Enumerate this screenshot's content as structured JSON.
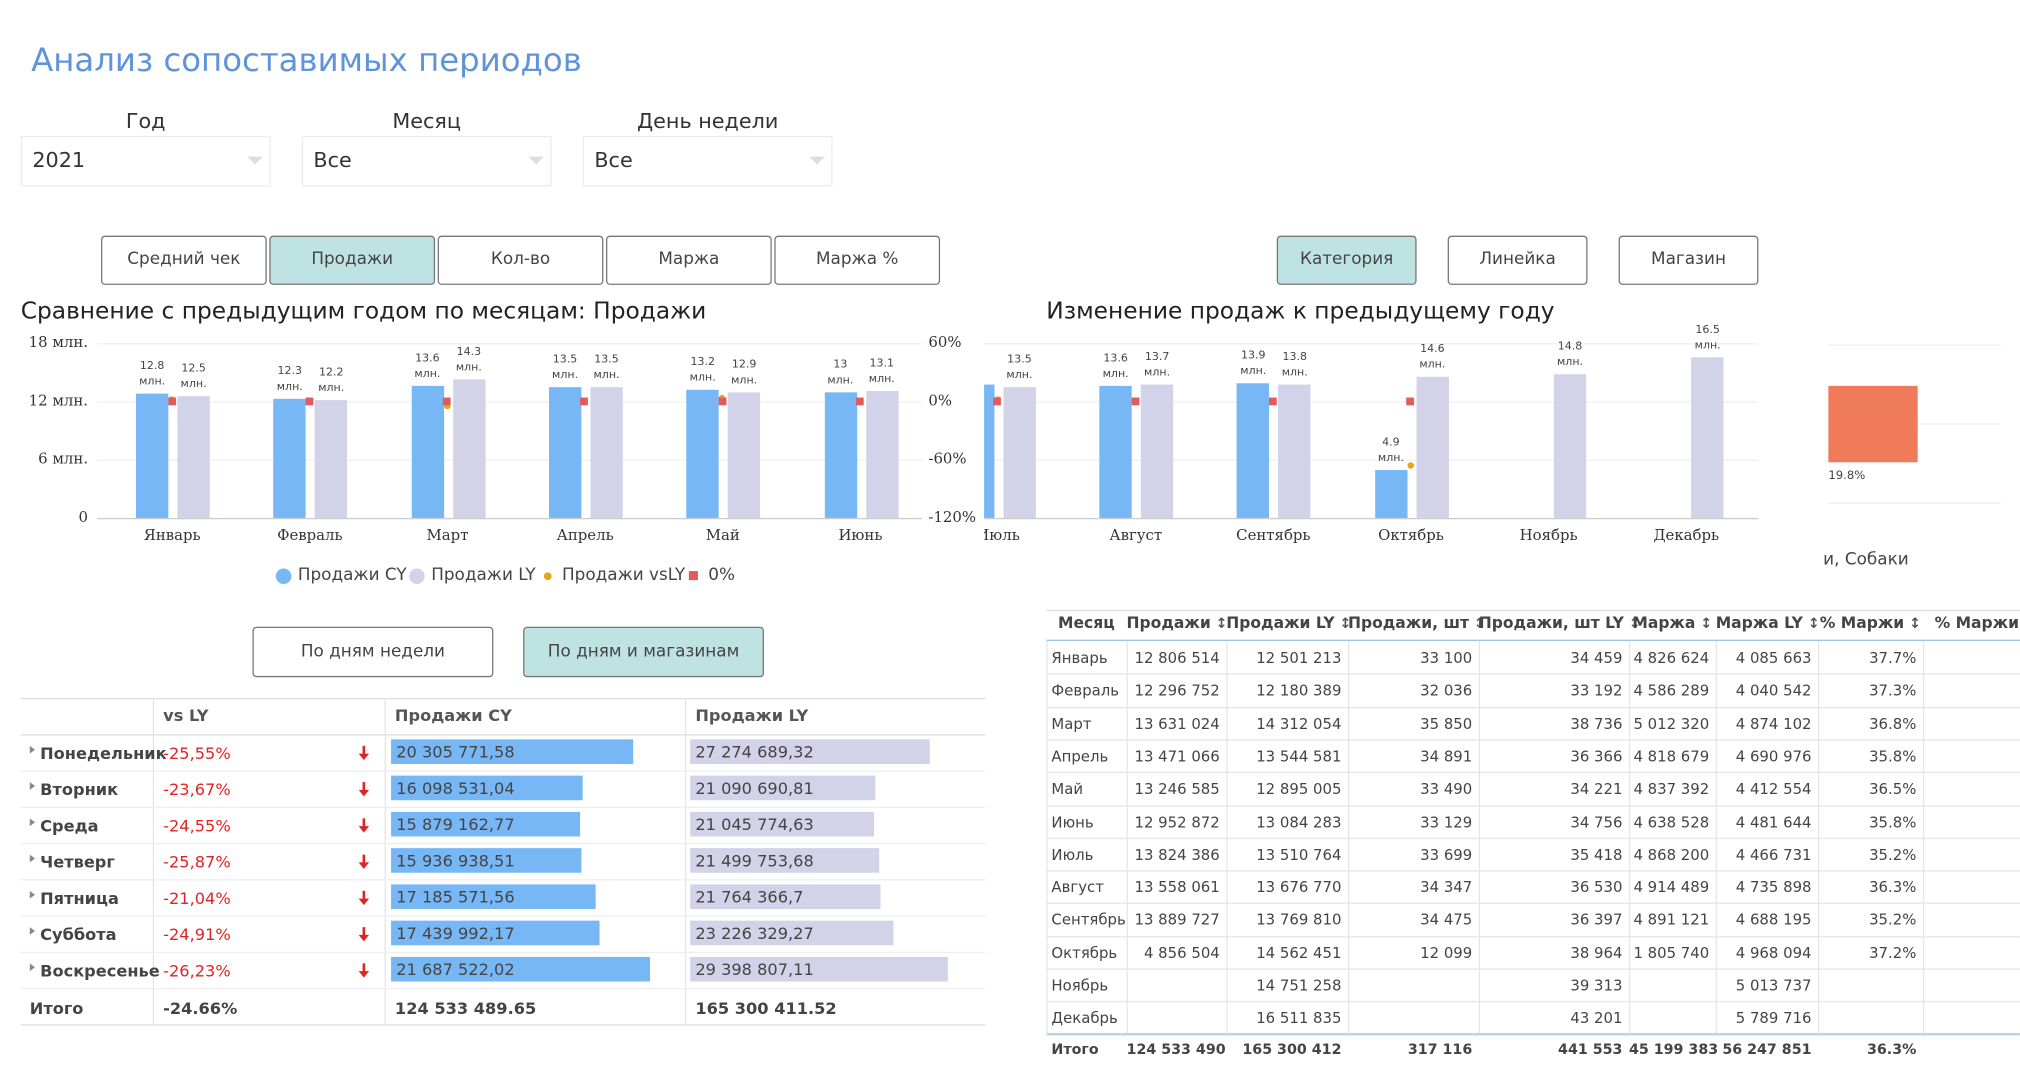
{
  "header": {
    "title": "Анализ сопоставимых периодов"
  },
  "filters": [
    {
      "label": "Год",
      "value": "2021"
    },
    {
      "label": "Месяц",
      "value": "Все"
    },
    {
      "label": "День недели",
      "value": "Все"
    }
  ],
  "metric_buttons": {
    "items": [
      "Средний чек",
      "Продажи",
      "Кол-во",
      "Маржа",
      "Маржа %"
    ],
    "active": 1
  },
  "breakdown_buttons": {
    "items": [
      "Категория",
      "Линейка",
      "Магазин"
    ],
    "active": 0
  },
  "monthly_chart": {
    "type": "bar",
    "title": "Сравнение с предыдущим годом по месяцам: Продажи",
    "categories": [
      "Январь",
      "Февраль",
      "Март",
      "Апрель",
      "Май",
      "Июнь",
      "Июль",
      "Август",
      "Сентябрь",
      "Октябрь",
      "Ноябрь",
      "Декабрь"
    ],
    "series": [
      {
        "name": "Продажи CY",
        "color": "#77b7f5",
        "values": [
          12.8,
          12.3,
          13.6,
          13.5,
          13.2,
          13,
          13.8,
          13.6,
          13.9,
          4.9,
          null,
          null
        ],
        "value_labels": [
          "12.8 млн.",
          "12.3 млн.",
          "13.6 млн.",
          "13.5 млн.",
          "13.2 млн.",
          "13 млн.",
          null,
          "13.6 млн.",
          "13.9 млн.",
          "4.9 млн.",
          null,
          null
        ]
      },
      {
        "name": "Продажи LY",
        "color": "#d2d2e8",
        "values": [
          12.5,
          12.2,
          14.3,
          13.5,
          12.9,
          13.1,
          13.5,
          13.7,
          13.8,
          14.6,
          14.8,
          16.5
        ],
        "value_labels": [
          "12.5 млн.",
          "12.2 млн.",
          "14.3 млн.",
          "13.5 млн.",
          "12.9 млн.",
          "13.1 млн.",
          "13.5 млн.",
          "13.7 млн.",
          "13.8 млн.",
          "14.6 млн.",
          "14.8 млн.",
          "16.5 млн."
        ]
      },
      {
        "name": "Продажи vsLY",
        "color": "#e8a317",
        "axis": "y2",
        "values": [
          2.4,
          1,
          -4.8,
          -0.5,
          2.7,
          -1,
          2.3,
          -0.9,
          0.9,
          -66.6,
          null,
          null
        ]
      },
      {
        "name": "0%",
        "color": "#e05c5c",
        "axis": "y2",
        "values": [
          0,
          0,
          0,
          0,
          0,
          0,
          0,
          0,
          0,
          0,
          null,
          null
        ]
      }
    ],
    "ylim": [
      0,
      18
    ],
    "yticks": [
      0,
      {
        "value": 6,
        "label": "6 млн."
      },
      {
        "value": 12,
        "label": "12 млн."
      },
      {
        "value": 18,
        "label": "18 млн."
      }
    ],
    "y2lim": [
      -120,
      60
    ],
    "y2ticks": [
      {
        "value": -120,
        "label": "-120%"
      },
      {
        "value": -60,
        "label": "-60%"
      },
      {
        "value": 0,
        "label": "0%"
      },
      {
        "value": 60,
        "label": "60%"
      }
    ]
  },
  "change_chart": {
    "type": "bar",
    "title": "Изменение продаж к предыдущему году",
    "categories": [
      "и, Собаки"
    ],
    "values": [
      19.8
    ],
    "value_labels": [
      "19.8%"
    ],
    "color": "#f07b5a"
  },
  "view_buttons": {
    "items": [
      "По дням недели",
      "По дням и магазинам"
    ],
    "active": 1
  },
  "weekday_table": {
    "columns": [
      "vs LY",
      "Продажи CY",
      "Продажи LY"
    ],
    "rows": [
      {
        "name": "Понедельник",
        "vs_ly": "-25,55%",
        "cy": 20305771.58,
        "cy_label": "20 305 771,58",
        "ly": 27274689.32,
        "ly_label": "27 274 689,32"
      },
      {
        "name": "Вторник",
        "vs_ly": "-23,67%",
        "cy": 16098531.04,
        "cy_label": "16 098 531,04",
        "ly": 21090690.81,
        "ly_label": "21 090 690,81"
      },
      {
        "name": "Среда",
        "vs_ly": "-24,55%",
        "cy": 15879162.77,
        "cy_label": "15 879 162,77",
        "ly": 21045774.63,
        "ly_label": "21 045 774,63"
      },
      {
        "name": "Четверг",
        "vs_ly": "-25,87%",
        "cy": 15936938.51,
        "cy_label": "15 936 938,51",
        "ly": 21499753.68,
        "ly_label": "21 499 753,68"
      },
      {
        "name": "Пятница",
        "vs_ly": "-21,04%",
        "cy": 17185571.56,
        "cy_label": "17 185 571,56",
        "ly": 21764366.7,
        "ly_label": "21 764 366,7"
      },
      {
        "name": "Суббота",
        "vs_ly": "-24,91%",
        "cy": 17439992.17,
        "cy_label": "17 439 992,17",
        "ly": 23226329.27,
        "ly_label": "23 226 329,27"
      },
      {
        "name": "Воскресенье",
        "vs_ly": "-26,23%",
        "cy": 21687522.02,
        "cy_label": "21 687 522,02",
        "ly": 29398807.11,
        "ly_label": "29 398 807,11"
      }
    ],
    "total": {
      "name": "Итого",
      "vs_ly": "-24.66%",
      "cy": "124 533 489.65",
      "ly": "165 300 411.52"
    }
  },
  "monthly_table": {
    "columns": [
      "Месяц",
      "Продажи",
      "Продажи LY",
      "Продажи, шт",
      "Продажи, шт LY",
      "Маржа",
      "Маржа LY",
      "% Маржи",
      "% Маржи LY"
    ],
    "rows": [
      [
        "Январь",
        "12 806 514",
        "12 501 213",
        "33 100",
        "34 459",
        "4 826 624",
        "4 085 663",
        "37.7%"
      ],
      [
        "Февраль",
        "12 296 752",
        "12 180 389",
        "32 036",
        "33 192",
        "4 586 289",
        "4 040 542",
        "37.3%"
      ],
      [
        "Март",
        "13 631 024",
        "14 312 054",
        "35 850",
        "38 736",
        "5 012 320",
        "4 874 102",
        "36.8%"
      ],
      [
        "Апрель",
        "13 471 066",
        "13 544 581",
        "34 891",
        "36 366",
        "4 818 679",
        "4 690 976",
        "35.8%"
      ],
      [
        "Май",
        "13 246 585",
        "12 895 005",
        "33 490",
        "34 221",
        "4 837 392",
        "4 412 554",
        "36.5%"
      ],
      [
        "Июнь",
        "12 952 872",
        "13 084 283",
        "33 129",
        "34 756",
        "4 638 528",
        "4 481 644",
        "35.8%"
      ],
      [
        "Июль",
        "13 824 386",
        "13 510 764",
        "33 699",
        "35 418",
        "4 868 200",
        "4 466 731",
        "35.2%"
      ],
      [
        "Август",
        "13 558 061",
        "13 676 770",
        "34 347",
        "36 530",
        "4 914 489",
        "4 735 898",
        "36.3%"
      ],
      [
        "Сентябрь",
        "13 889 727",
        "13 769 810",
        "34 475",
        "36 397",
        "4 891 121",
        "4 688 195",
        "35.2%"
      ],
      [
        "Октябрь",
        "4 856 504",
        "14 562 451",
        "12 099",
        "38 964",
        "1 805 740",
        "4 968 094",
        "37.2%"
      ],
      [
        "Ноябрь",
        null,
        "14 751 258",
        null,
        "39 313",
        null,
        "5 013 737",
        null
      ],
      [
        "Декабрь",
        null,
        "16 511 835",
        null,
        "43 201",
        null,
        "5 789 716",
        null
      ]
    ],
    "total": [
      "Итого",
      "124 533 490",
      "165 300 412",
      "317 116",
      "441 553",
      "45 199 383",
      "56 247 851",
      "36.3%"
    ]
  }
}
